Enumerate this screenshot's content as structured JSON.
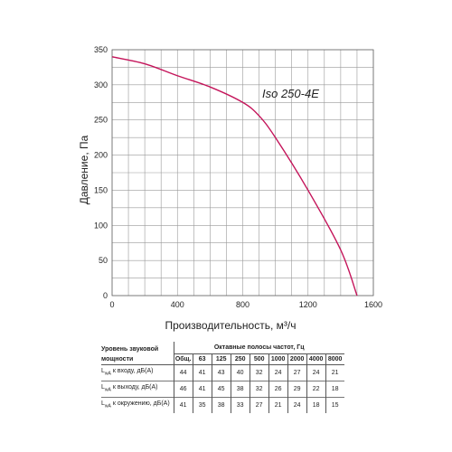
{
  "chart_data": {
    "type": "line",
    "x": [
      0,
      200,
      400,
      600,
      800,
      900,
      1000,
      1200,
      1400,
      1500
    ],
    "series": [
      {
        "name": "Iso 250-4E",
        "values": [
          340,
          330,
          313,
          297,
          275,
          256,
          225,
          150,
          65,
          0
        ],
        "color": "#c4145a"
      }
    ],
    "xlabel": "Производительность, м³/ч",
    "ylabel": "Давление, Па",
    "xlim": [
      0,
      1600
    ],
    "ylim": [
      0,
      350
    ],
    "xticks": [
      0,
      400,
      800,
      1200,
      1600
    ],
    "yticks": [
      0,
      50,
      100,
      150,
      200,
      250,
      300,
      350
    ],
    "grid": true
  },
  "noise_table": {
    "title": "Уровень звуковой мощности",
    "bands_title": "Октавные полосы частот, Гц",
    "columns": [
      "Общ.",
      "63",
      "125",
      "250",
      "500",
      "1000",
      "2000",
      "4000",
      "8000"
    ],
    "rows": [
      {
        "label": "к входу, дБ(А)",
        "values": [
          "44",
          "41",
          "43",
          "40",
          "32",
          "24",
          "27",
          "24",
          "21"
        ]
      },
      {
        "label": "к выходу, дБ(А)",
        "values": [
          "46",
          "41",
          "45",
          "38",
          "32",
          "26",
          "29",
          "22",
          "18"
        ]
      },
      {
        "label": "к окружению, дБ(А)",
        "values": [
          "41",
          "35",
          "38",
          "33",
          "27",
          "21",
          "24",
          "18",
          "15"
        ]
      }
    ]
  }
}
